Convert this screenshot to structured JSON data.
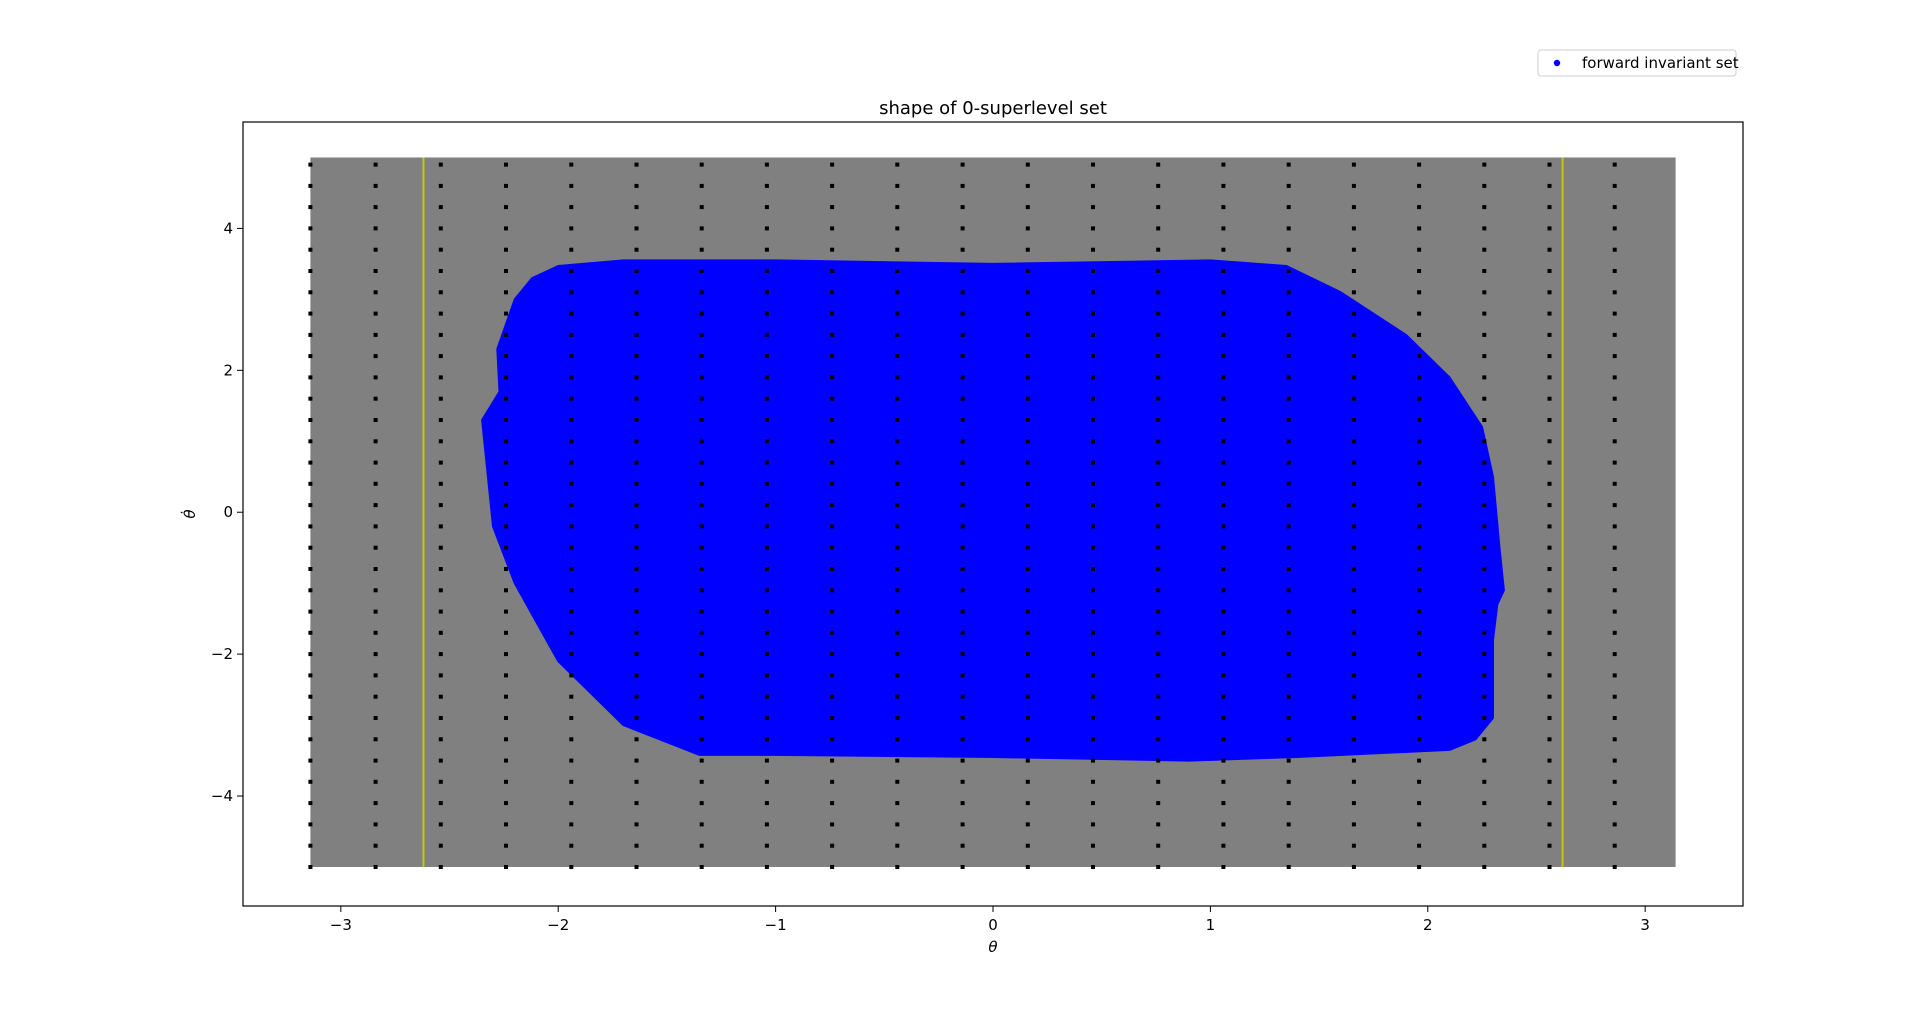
{
  "chart_data": {
    "type": "scatter",
    "title": "shape of 0-superlevel set",
    "xlabel": "θ",
    "ylabel": "θ̇",
    "xlim": [
      -3.45,
      3.45
    ],
    "ylim": [
      -5.55,
      5.5
    ],
    "xticks": [
      -3,
      -2,
      -1,
      0,
      1,
      2,
      3
    ],
    "yticks": [
      -4,
      -2,
      0,
      2,
      4
    ],
    "xtick_labels": [
      "−3",
      "−2",
      "−1",
      "0",
      "1",
      "2",
      "3"
    ],
    "ytick_labels": [
      "−4",
      "−2",
      "0",
      "2",
      "4"
    ],
    "legend": {
      "placement": "top-right, above axes",
      "entries": [
        {
          "label": "forward invariant set",
          "color": "#0000ff"
        }
      ]
    },
    "grid": false,
    "background_region": {
      "x": [
        -3.14,
        3.14
      ],
      "y": [
        -5.0,
        5.0
      ],
      "color": "#808080"
    },
    "forward_invariant_set": {
      "name": "forward invariant set",
      "color": "#0000ff",
      "boundary": [
        [
          -2.12,
          3.3
        ],
        [
          -2.0,
          3.47
        ],
        [
          -1.7,
          3.55
        ],
        [
          -1.0,
          3.55
        ],
        [
          0.0,
          3.5
        ],
        [
          1.0,
          3.55
        ],
        [
          1.35,
          3.47
        ],
        [
          1.6,
          3.1
        ],
        [
          1.9,
          2.5
        ],
        [
          2.1,
          1.9
        ],
        [
          2.25,
          1.2
        ],
        [
          2.3,
          0.5
        ],
        [
          2.33,
          -0.5
        ],
        [
          2.35,
          -1.1
        ],
        [
          2.32,
          -1.3
        ],
        [
          2.3,
          -1.8
        ],
        [
          2.3,
          -2.9
        ],
        [
          2.22,
          -3.2
        ],
        [
          2.1,
          -3.35
        ],
        [
          1.4,
          -3.45
        ],
        [
          0.9,
          -3.5
        ],
        [
          0.0,
          -3.45
        ],
        [
          -1.0,
          -3.42
        ],
        [
          -1.35,
          -3.42
        ],
        [
          -1.7,
          -3.0
        ],
        [
          -2.0,
          -2.1
        ],
        [
          -2.2,
          -1.0
        ],
        [
          -2.3,
          -0.2
        ],
        [
          -2.35,
          1.3
        ],
        [
          -2.27,
          1.7
        ],
        [
          -2.28,
          2.3
        ],
        [
          -2.2,
          3.0
        ]
      ]
    },
    "marker_columns": {
      "color": "#000000",
      "x": [
        -3.14,
        -2.84,
        -2.54,
        -2.24,
        -1.94,
        -1.64,
        -1.34,
        -1.04,
        -0.74,
        -0.44,
        -0.14,
        0.16,
        0.46,
        0.76,
        1.06,
        1.36,
        1.66,
        1.96,
        2.26,
        2.56,
        2.86
      ],
      "y_range": [
        -5.0,
        5.0
      ],
      "y_step": 0.3
    },
    "vertical_lines": {
      "color": "#c8c800",
      "x": [
        -2.62,
        2.62
      ],
      "y_range": [
        -5.0,
        5.0
      ]
    }
  }
}
